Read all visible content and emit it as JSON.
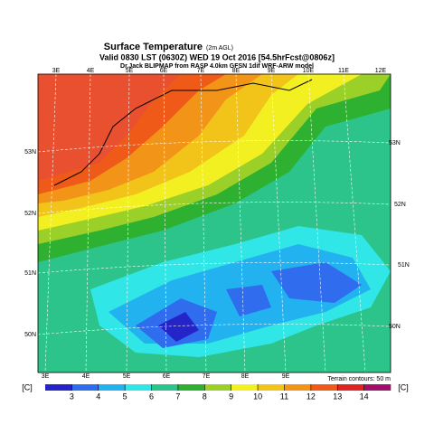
{
  "header": {
    "title": "Surface Temperature",
    "title_note": "(2m AGL)",
    "valid": "Valid 0830 LST (0630Z) WED 19 Oct 2016 [54.5hrFcst@0806z]",
    "source": "Dr.Jack BLIPMAP from RASP 4.0km GFSN 1dif WRF-ARW model"
  },
  "map": {
    "lon_top": [
      "3E",
      "4E",
      "5E",
      "6E",
      "7E",
      "8E",
      "9E",
      "10E",
      "11E",
      "12E"
    ],
    "lon_bottom": [
      "3E",
      "4E",
      "5E",
      "6E",
      "7E",
      "8E",
      "9E"
    ],
    "lat_left": [
      "53N",
      "52N",
      "51N",
      "50N"
    ],
    "lat_right": [
      "53N",
      "52N",
      "51N",
      "50N"
    ],
    "terrain_note": "Terrain contours: 50 m"
  },
  "colorbar": {
    "unit": "[C]",
    "ticks": [
      3,
      4,
      5,
      6,
      7,
      8,
      9,
      10,
      11,
      12,
      13,
      14
    ],
    "range": [
      2,
      15
    ],
    "colors": [
      "#2424c8",
      "#2f6cee",
      "#22b2f0",
      "#30e6e6",
      "#2cc48a",
      "#2eb030",
      "#9ad028",
      "#f2f020",
      "#f2c41a",
      "#f29418",
      "#f05a18",
      "#e02424",
      "#a0106a"
    ]
  }
}
